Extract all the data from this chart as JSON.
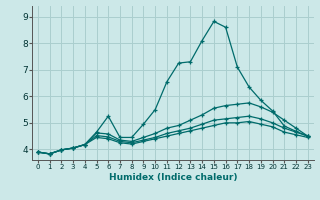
{
  "xlabel": "Humidex (Indice chaleur)",
  "background_color": "#cce8e8",
  "grid_color": "#aacece",
  "line_color": "#006b6b",
  "xlim": [
    -0.5,
    23.5
  ],
  "ylim": [
    3.6,
    9.4
  ],
  "xticks": [
    0,
    1,
    2,
    3,
    4,
    5,
    6,
    7,
    8,
    9,
    10,
    11,
    12,
    13,
    14,
    15,
    16,
    17,
    18,
    19,
    20,
    21,
    22,
    23
  ],
  "yticks": [
    4,
    5,
    6,
    7,
    8,
    9
  ],
  "curves": [
    [
      3.9,
      3.83,
      3.98,
      4.05,
      4.18,
      4.65,
      5.25,
      4.45,
      4.45,
      4.95,
      5.5,
      6.55,
      7.25,
      7.3,
      8.1,
      8.82,
      8.6,
      7.1,
      6.35,
      5.85,
      5.45,
      4.88,
      4.68,
      4.5
    ],
    [
      3.9,
      3.83,
      3.98,
      4.05,
      4.18,
      4.62,
      4.58,
      4.35,
      4.3,
      4.45,
      4.6,
      4.8,
      4.9,
      5.1,
      5.3,
      5.55,
      5.65,
      5.7,
      5.75,
      5.6,
      5.4,
      5.1,
      4.8,
      4.5
    ],
    [
      3.9,
      3.83,
      3.98,
      4.05,
      4.18,
      4.52,
      4.47,
      4.3,
      4.25,
      4.35,
      4.45,
      4.6,
      4.7,
      4.8,
      4.95,
      5.1,
      5.15,
      5.2,
      5.25,
      5.15,
      5.0,
      4.8,
      4.65,
      4.5
    ],
    [
      3.9,
      3.83,
      3.98,
      4.05,
      4.18,
      4.45,
      4.4,
      4.25,
      4.2,
      4.3,
      4.4,
      4.5,
      4.6,
      4.7,
      4.8,
      4.9,
      5.0,
      5.0,
      5.05,
      4.95,
      4.85,
      4.65,
      4.55,
      4.45
    ]
  ]
}
